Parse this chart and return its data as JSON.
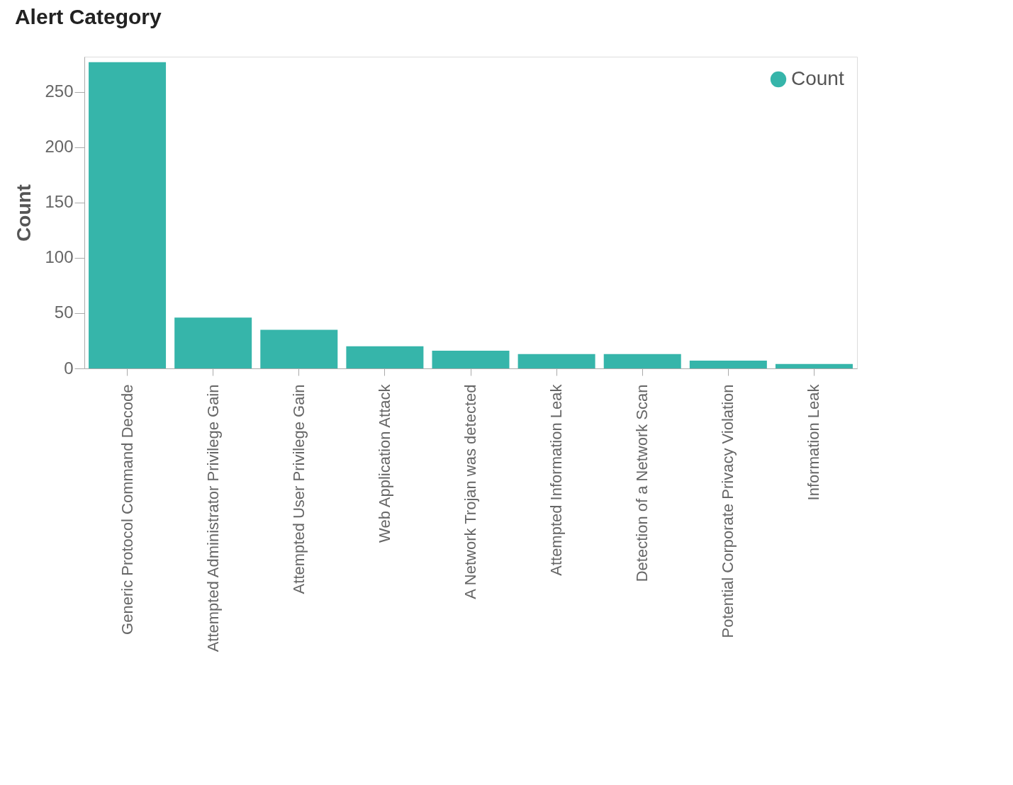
{
  "chart_data": {
    "type": "bar",
    "title": "Alert Category",
    "ylabel": "Count",
    "categories": [
      "Generic Protocol Command Decode",
      "Attempted Administrator Privilege Gain",
      "Attempted User Privilege Gain",
      "Web Application Attack",
      "A Network Trojan was detected",
      "Attempted Information Leak",
      "Detection of a Network Scan",
      "Potential Corporate Privacy Violation",
      "Information Leak"
    ],
    "series": [
      {
        "name": "Count",
        "color": "#36b5aa",
        "values": [
          277,
          46,
          35,
          20,
          16,
          13,
          13,
          7,
          4
        ]
      }
    ],
    "ylim": [
      0,
      282
    ],
    "yticks": [
      0,
      50,
      100,
      150,
      200,
      250
    ],
    "grid": false,
    "legend": "top right"
  }
}
